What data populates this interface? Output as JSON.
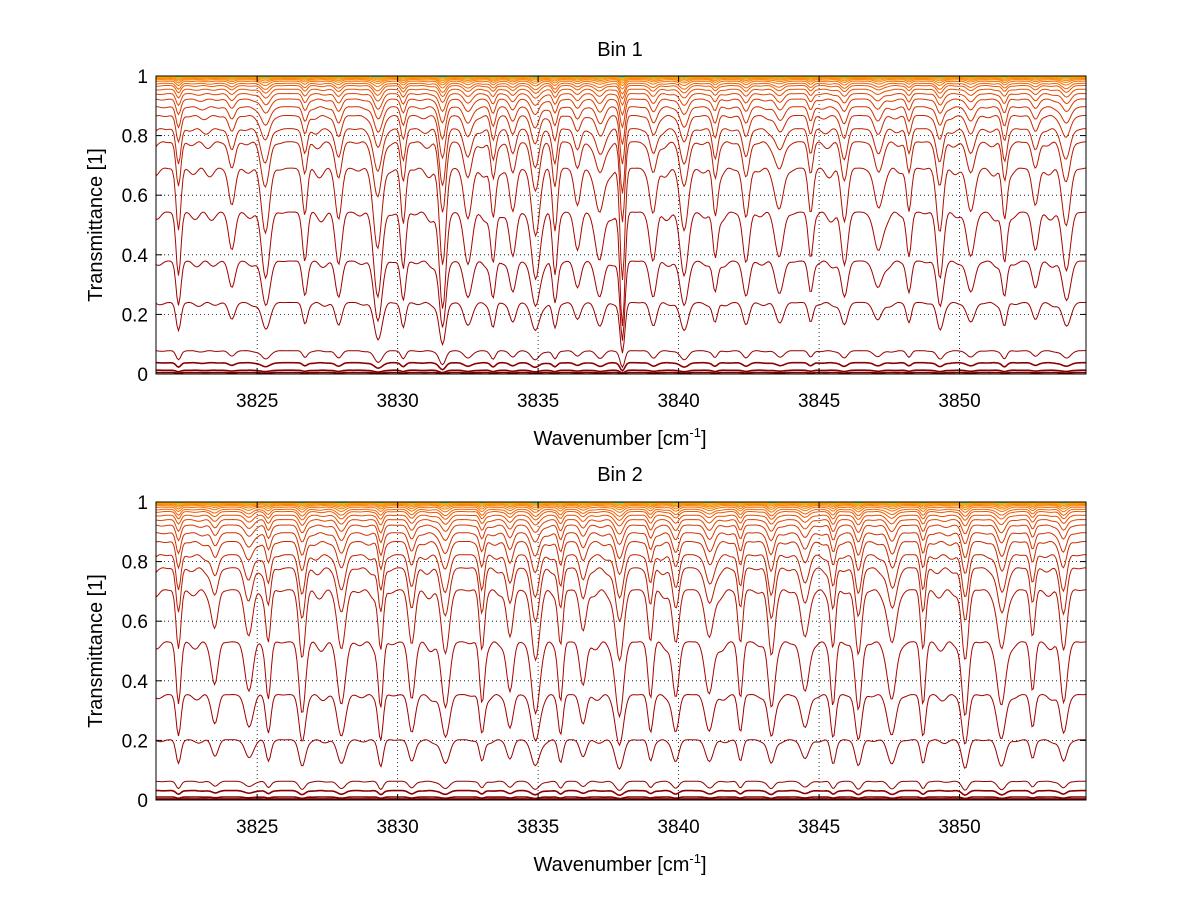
{
  "chart_data": [
    {
      "type": "line",
      "title": "Bin 1",
      "xlabel": "Wavenumber [cm",
      "xlabel_sup": "-1",
      "xlabel_suffix": "]",
      "ylabel": "Transmittance [1]",
      "xlim": [
        3821.4,
        3854.5
      ],
      "ylim": [
        0,
        1
      ],
      "x_ticks": [
        3825,
        3830,
        3835,
        3840,
        3845,
        3850
      ],
      "x_tick_labels": [
        "3825",
        "3830",
        "3835",
        "3840",
        "3845",
        "3850"
      ],
      "y_ticks": [
        0,
        0.2,
        0.4,
        0.6,
        0.8,
        1
      ],
      "y_tick_labels": [
        "0",
        "0.2",
        "0.4",
        "0.6",
        "0.8",
        "1"
      ],
      "grid": true,
      "series_count": 26,
      "series_baselines": [
        0.004,
        0.01,
        0.03,
        0.062,
        0.19,
        0.3,
        0.43,
        0.58,
        0.7,
        0.76,
        0.82,
        0.86,
        0.895,
        0.92,
        0.94,
        0.955,
        0.965,
        0.975,
        0.982,
        0.987,
        0.991,
        0.994,
        0.996,
        0.998,
        0.999,
        0.9995
      ],
      "absorption_lines": [
        {
          "x": 3822.2,
          "depth": 0.5
        },
        {
          "x": 3824.1,
          "depth": 0.3
        },
        {
          "x": 3825.3,
          "depth": 0.45
        },
        {
          "x": 3826.7,
          "depth": 0.35
        },
        {
          "x": 3827.9,
          "depth": 0.4
        },
        {
          "x": 3829.3,
          "depth": 0.6
        },
        {
          "x": 3830.2,
          "depth": 0.45
        },
        {
          "x": 3831.6,
          "depth": 0.75
        },
        {
          "x": 3832.5,
          "depth": 0.4
        },
        {
          "x": 3833.4,
          "depth": 0.4
        },
        {
          "x": 3834.1,
          "depth": 0.35
        },
        {
          "x": 3834.9,
          "depth": 0.5
        },
        {
          "x": 3835.6,
          "depth": 0.45
        },
        {
          "x": 3836.4,
          "depth": 0.3
        },
        {
          "x": 3837.2,
          "depth": 0.35
        },
        {
          "x": 3838.0,
          "depth": 0.9
        },
        {
          "x": 3839.1,
          "depth": 0.35
        },
        {
          "x": 3840.2,
          "depth": 0.5
        },
        {
          "x": 3841.3,
          "depth": 0.35
        },
        {
          "x": 3842.4,
          "depth": 0.4
        },
        {
          "x": 3843.6,
          "depth": 0.3
        },
        {
          "x": 3844.7,
          "depth": 0.35
        },
        {
          "x": 3845.9,
          "depth": 0.4
        },
        {
          "x": 3847.1,
          "depth": 0.3
        },
        {
          "x": 3848.2,
          "depth": 0.35
        },
        {
          "x": 3849.3,
          "depth": 0.45
        },
        {
          "x": 3850.4,
          "depth": 0.35
        },
        {
          "x": 3851.6,
          "depth": 0.4
        },
        {
          "x": 3852.7,
          "depth": 0.3
        },
        {
          "x": 3853.8,
          "depth": 0.4
        }
      ]
    },
    {
      "type": "line",
      "title": "Bin 2",
      "xlabel": "Wavenumber [cm",
      "xlabel_sup": "-1",
      "xlabel_suffix": "]",
      "ylabel": "Transmittance [1]",
      "xlim": [
        3821.4,
        3854.5
      ],
      "ylim": [
        0,
        1
      ],
      "x_ticks": [
        3825,
        3830,
        3835,
        3840,
        3845,
        3850
      ],
      "x_tick_labels": [
        "3825",
        "3830",
        "3835",
        "3840",
        "3845",
        "3850"
      ],
      "y_ticks": [
        0,
        0.2,
        0.4,
        0.6,
        0.8,
        1
      ],
      "y_tick_labels": [
        "0",
        "0.2",
        "0.4",
        "0.6",
        "0.8",
        "1"
      ],
      "grid": true,
      "series_count": 26,
      "series_baselines": [
        0.003,
        0.008,
        0.025,
        0.05,
        0.16,
        0.28,
        0.42,
        0.6,
        0.7,
        0.76,
        0.82,
        0.86,
        0.895,
        0.92,
        0.94,
        0.955,
        0.965,
        0.975,
        0.982,
        0.987,
        0.991,
        0.994,
        0.996,
        0.998,
        0.999,
        0.9995
      ],
      "absorption_lines": [
        {
          "x": 3822.2,
          "depth": 0.5
        },
        {
          "x": 3823.5,
          "depth": 0.3
        },
        {
          "x": 3824.7,
          "depth": 0.35
        },
        {
          "x": 3825.4,
          "depth": 0.4
        },
        {
          "x": 3826.6,
          "depth": 0.55
        },
        {
          "x": 3828.0,
          "depth": 0.5
        },
        {
          "x": 3829.4,
          "depth": 0.5
        },
        {
          "x": 3830.5,
          "depth": 0.45
        },
        {
          "x": 3831.7,
          "depth": 0.5
        },
        {
          "x": 3833.0,
          "depth": 0.45
        },
        {
          "x": 3834.0,
          "depth": 0.4
        },
        {
          "x": 3834.9,
          "depth": 0.55
        },
        {
          "x": 3835.8,
          "depth": 0.45
        },
        {
          "x": 3836.6,
          "depth": 0.35
        },
        {
          "x": 3837.9,
          "depth": 0.6
        },
        {
          "x": 3839.0,
          "depth": 0.4
        },
        {
          "x": 3839.9,
          "depth": 0.45
        },
        {
          "x": 3841.1,
          "depth": 0.4
        },
        {
          "x": 3842.2,
          "depth": 0.45
        },
        {
          "x": 3843.3,
          "depth": 0.5
        },
        {
          "x": 3844.5,
          "depth": 0.4
        },
        {
          "x": 3845.5,
          "depth": 0.45
        },
        {
          "x": 3846.4,
          "depth": 0.55
        },
        {
          "x": 3847.6,
          "depth": 0.45
        },
        {
          "x": 3848.7,
          "depth": 0.5
        },
        {
          "x": 3850.2,
          "depth": 0.6
        },
        {
          "x": 3851.5,
          "depth": 0.5
        },
        {
          "x": 3852.6,
          "depth": 0.4
        },
        {
          "x": 3853.7,
          "depth": 0.45
        }
      ]
    }
  ]
}
